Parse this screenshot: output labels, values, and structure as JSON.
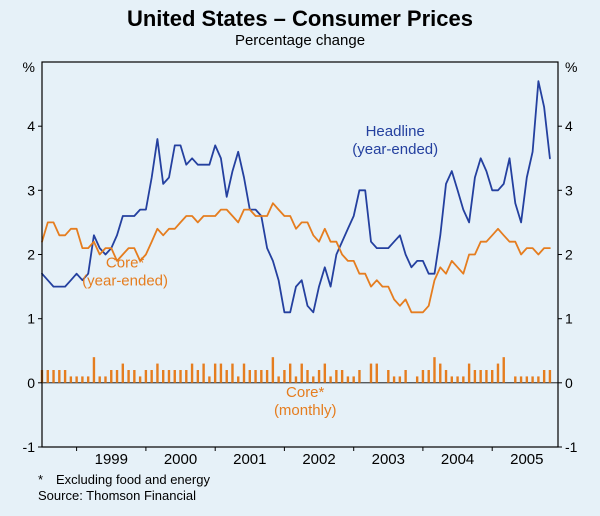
{
  "chart_data": {
    "type": "line",
    "title": "United States – Consumer Prices",
    "subtitle": "Percentage change",
    "y_unit": "%",
    "ylim": [
      -1,
      5
    ],
    "yticks": [
      -1,
      0,
      1,
      2,
      3,
      4
    ],
    "x_domain": [
      1998.5,
      2005.95
    ],
    "frequency": "monthly",
    "x_months_start": "1998-07",
    "xticks_years": [
      1999,
      2000,
      2001,
      2002,
      2003,
      2004,
      2005
    ],
    "legend": "inline-annotations",
    "grid": false,
    "colors": {
      "headline_blue": "#24409f",
      "core_orange": "#e57d1f"
    },
    "series": [
      {
        "name": "Headline (year-ended)",
        "key": "headline-year-ended-line",
        "render": "line",
        "color": "#24409f",
        "values": [
          1.7,
          1.6,
          1.5,
          1.5,
          1.5,
          1.6,
          1.7,
          1.6,
          1.7,
          2.3,
          2.1,
          2.0,
          2.1,
          2.3,
          2.6,
          2.6,
          2.6,
          2.7,
          2.7,
          3.2,
          3.8,
          3.1,
          3.2,
          3.7,
          3.7,
          3.4,
          3.5,
          3.4,
          3.4,
          3.4,
          3.7,
          3.5,
          2.9,
          3.3,
          3.6,
          3.2,
          2.7,
          2.7,
          2.6,
          2.1,
          1.9,
          1.6,
          1.1,
          1.1,
          1.5,
          1.6,
          1.2,
          1.1,
          1.5,
          1.8,
          1.5,
          2.0,
          2.2,
          2.4,
          2.6,
          3.0,
          3.0,
          2.2,
          2.1,
          2.1,
          2.1,
          2.2,
          2.3,
          2.0,
          1.8,
          1.9,
          1.9,
          1.7,
          1.7,
          2.3,
          3.1,
          3.3,
          3.0,
          2.7,
          2.5,
          3.2,
          3.5,
          3.3,
          3.0,
          3.0,
          3.1,
          3.5,
          2.8,
          2.5,
          3.2,
          3.6,
          4.7,
          4.3,
          3.5
        ]
      },
      {
        "name": "Core (year-ended)",
        "key": "core-year-ended-line",
        "render": "line",
        "color": "#e57d1f",
        "values": [
          2.2,
          2.5,
          2.5,
          2.3,
          2.3,
          2.4,
          2.4,
          2.1,
          2.1,
          2.2,
          2.0,
          2.1,
          2.1,
          1.9,
          2.0,
          2.1,
          2.1,
          1.9,
          2.0,
          2.2,
          2.4,
          2.3,
          2.4,
          2.4,
          2.5,
          2.6,
          2.6,
          2.5,
          2.6,
          2.6,
          2.6,
          2.7,
          2.7,
          2.6,
          2.5,
          2.7,
          2.7,
          2.6,
          2.6,
          2.6,
          2.8,
          2.7,
          2.6,
          2.6,
          2.4,
          2.5,
          2.5,
          2.3,
          2.2,
          2.4,
          2.2,
          2.2,
          2.0,
          1.9,
          1.9,
          1.7,
          1.7,
          1.5,
          1.6,
          1.5,
          1.5,
          1.3,
          1.2,
          1.3,
          1.1,
          1.1,
          1.1,
          1.2,
          1.6,
          1.8,
          1.7,
          1.9,
          1.8,
          1.7,
          2.0,
          2.0,
          2.2,
          2.2,
          2.3,
          2.4,
          2.3,
          2.2,
          2.2,
          2.0,
          2.1,
          2.1,
          2.0,
          2.1,
          2.1
        ]
      },
      {
        "name": "Core (monthly)",
        "key": "core-monthly-bars",
        "render": "bar",
        "color": "#e57d1f",
        "values": [
          0.2,
          0.2,
          0.2,
          0.2,
          0.2,
          0.1,
          0.1,
          0.1,
          0.1,
          0.4,
          0.1,
          0.1,
          0.2,
          0.2,
          0.3,
          0.2,
          0.2,
          0.1,
          0.2,
          0.2,
          0.3,
          0.2,
          0.2,
          0.2,
          0.2,
          0.2,
          0.3,
          0.2,
          0.3,
          0.1,
          0.3,
          0.3,
          0.2,
          0.3,
          0.1,
          0.3,
          0.2,
          0.2,
          0.2,
          0.2,
          0.4,
          0.1,
          0.2,
          0.3,
          0.1,
          0.3,
          0.2,
          0.1,
          0.2,
          0.3,
          0.1,
          0.2,
          0.2,
          0.1,
          0.1,
          0.2,
          0.0,
          0.3,
          0.3,
          0.0,
          0.2,
          0.1,
          0.1,
          0.2,
          0.0,
          0.1,
          0.2,
          0.2,
          0.4,
          0.3,
          0.2,
          0.1,
          0.1,
          0.1,
          0.3,
          0.2,
          0.2,
          0.2,
          0.2,
          0.3,
          0.4,
          0.0,
          0.1,
          0.1,
          0.1,
          0.1,
          0.1,
          0.2,
          0.2
        ]
      }
    ],
    "annotations": [
      {
        "text": "Headline",
        "x": 2003.6,
        "y": 3.85,
        "color": "#24409f"
      },
      {
        "text": "(year-ended)",
        "x": 2003.6,
        "y": 3.57,
        "color": "#24409f"
      },
      {
        "text": "Core*",
        "x": 1999.7,
        "y": 1.8,
        "color": "#e57d1f"
      },
      {
        "text": "(year-ended)",
        "x": 1999.7,
        "y": 1.52,
        "color": "#e57d1f"
      },
      {
        "text": "Core*",
        "x": 2002.3,
        "y": -0.22,
        "color": "#e57d1f"
      },
      {
        "text": "(monthly)",
        "x": 2002.3,
        "y": -0.5,
        "color": "#e57d1f"
      }
    ]
  },
  "footnotes": {
    "marker": "*",
    "note": "Excluding food and energy",
    "source": "Source: Thomson Financial"
  }
}
